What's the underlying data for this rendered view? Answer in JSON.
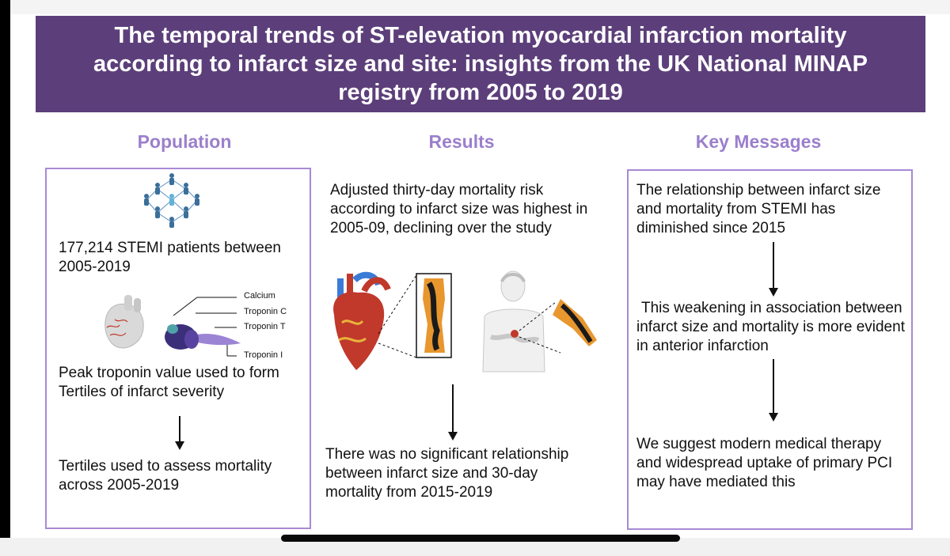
{
  "title": "The temporal trends of ST-elevation myocardial infarction mortality according to infarct size and site: insights from the UK National MINAP registry from 2005 to 2019",
  "columns": {
    "population": {
      "heading": "Population",
      "text1": "177,214 STEMI patients between 2005-2019",
      "labels": [
        "Calcium",
        "Troponin C",
        "Troponin T",
        "Troponin I"
      ],
      "text2": "Peak troponin value used to form Tertiles of infarct severity",
      "text3": "Tertiles used to assess mortality across 2005-2019"
    },
    "results": {
      "heading": "Results",
      "text1": "Adjusted thirty-day mortality risk according to infarct size was highest in 2005-09, declining over the study",
      "text2": "There was no significant relationship between infarct size and 30-day mortality from 2015-2019"
    },
    "key_messages": {
      "heading": "Key Messages",
      "text1": "The relationship between infarct size and mortality from STEMI has diminished since 2015",
      "text2": "This weakening in association between infarct size and mortality is more evident in anterior infarction",
      "text3": "We suggest modern medical therapy and widespread uptake of primary PCI may have mediated this"
    }
  },
  "colors": {
    "banner": "#5c3f7a",
    "heading": "#9b7fcc",
    "border": "#a889d4"
  }
}
